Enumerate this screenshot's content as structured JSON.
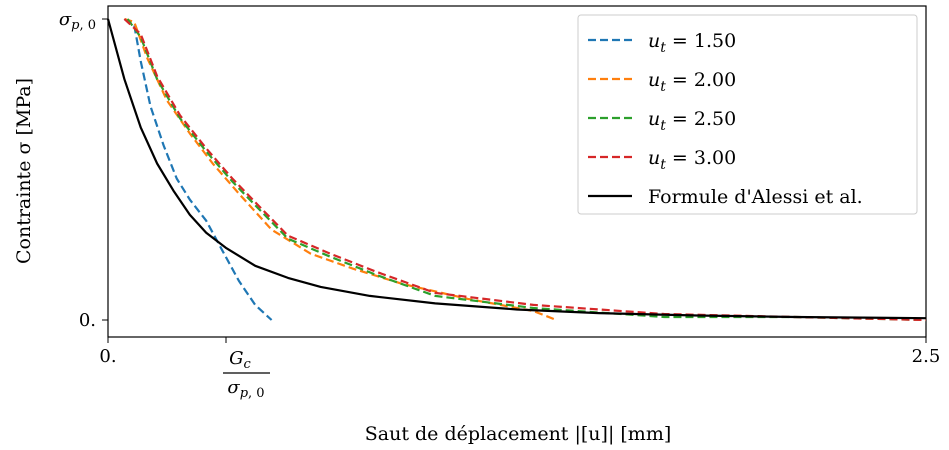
{
  "chart_data": {
    "type": "line",
    "xlabel": "Saut de déplacement |[u]| [mm]",
    "ylabel": "Contrainte σ [MPa]",
    "xlim": [
      0,
      2.5
    ],
    "ylim": [
      -0.04,
      1.04
    ],
    "x_ticks": [
      {
        "value": 0,
        "label": "0."
      },
      {
        "value": 0.36,
        "label": "G_c / σ_{p,0}"
      },
      {
        "value": 2.5,
        "label": "2.5"
      }
    ],
    "y_ticks": [
      {
        "value": 0,
        "label": "0."
      },
      {
        "value": 1,
        "label": "σ_{p,0}"
      }
    ],
    "grid": false,
    "legend_position": "top-right",
    "series": [
      {
        "name": "u_t = 1.50",
        "color": "#1f77b4",
        "style": "dashed",
        "x": [
          0.05,
          0.08,
          0.1,
          0.13,
          0.17,
          0.21,
          0.25,
          0.3,
          0.35,
          0.4,
          0.45,
          0.5
        ],
        "y": [
          1.0,
          0.98,
          0.86,
          0.71,
          0.58,
          0.47,
          0.4,
          0.33,
          0.23,
          0.13,
          0.05,
          0.0
        ]
      },
      {
        "name": "u_t = 2.00",
        "color": "#ff7f0e",
        "style": "dashed",
        "x": [
          0.05,
          0.08,
          0.12,
          0.18,
          0.25,
          0.32,
          0.4,
          0.5,
          0.62,
          0.75,
          0.9,
          1.1,
          1.3,
          1.37
        ],
        "y": [
          1.0,
          0.99,
          0.87,
          0.73,
          0.62,
          0.52,
          0.42,
          0.3,
          0.22,
          0.17,
          0.12,
          0.07,
          0.03,
          0.0
        ]
      },
      {
        "name": "u_t = 2.50",
        "color": "#2ca02c",
        "style": "dashed",
        "x": [
          0.06,
          0.1,
          0.15,
          0.22,
          0.3,
          0.38,
          0.46,
          0.55,
          0.68,
          0.82,
          1.0,
          1.3,
          1.7,
          2.1,
          2.5
        ],
        "y": [
          1.0,
          0.94,
          0.8,
          0.67,
          0.56,
          0.46,
          0.37,
          0.27,
          0.21,
          0.15,
          0.08,
          0.04,
          0.01,
          0.01,
          0.0
        ]
      },
      {
        "name": "u_t = 3.00",
        "color": "#d62728",
        "style": "dashed",
        "x": [
          0.05,
          0.1,
          0.15,
          0.22,
          0.3,
          0.38,
          0.46,
          0.55,
          0.68,
          0.82,
          1.0,
          1.3,
          1.7,
          2.1,
          2.5
        ],
        "y": [
          1.0,
          0.95,
          0.81,
          0.68,
          0.57,
          0.47,
          0.38,
          0.28,
          0.22,
          0.16,
          0.09,
          0.05,
          0.02,
          0.01,
          0.0
        ]
      },
      {
        "name": "Formule d'Alessi et al.",
        "color": "#000000",
        "style": "solid",
        "x": [
          0.0,
          0.05,
          0.1,
          0.15,
          0.2,
          0.25,
          0.3,
          0.36,
          0.45,
          0.55,
          0.65,
          0.8,
          1.0,
          1.25,
          1.5,
          1.8,
          2.1,
          2.5
        ],
        "y": [
          1.0,
          0.8,
          0.64,
          0.52,
          0.43,
          0.35,
          0.29,
          0.24,
          0.18,
          0.14,
          0.11,
          0.08,
          0.055,
          0.035,
          0.023,
          0.015,
          0.01,
          0.006
        ]
      }
    ]
  }
}
